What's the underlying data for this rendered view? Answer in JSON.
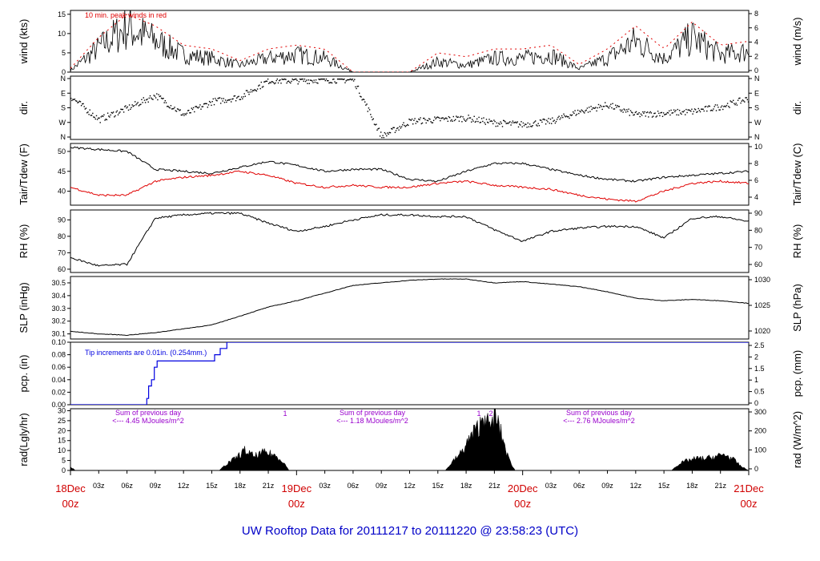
{
  "footer": "UW Rooftop Data for 20111217  to  20111220 @ 23:58:23  (UTC)",
  "colors": {
    "temp": "#000000",
    "dew": "#e00000",
    "peak": "#e00000",
    "pcp": "#0000e0",
    "note": "#9900cc",
    "day": "#d00000",
    "footer": "#0000c8"
  },
  "chart_data": [
    {
      "type": "line",
      "id": "wind",
      "ylabel_left": "wind (kts)",
      "ylabel_right": "wind (m/s)",
      "ylim": [
        0,
        16
      ],
      "yticks_left": [
        "0",
        "5",
        "10",
        "15"
      ],
      "yticks_right": [
        "0",
        "2",
        "4",
        "6",
        "8"
      ],
      "annotation": "10 min. peak winds in red",
      "x": [
        0,
        3,
        6,
        9,
        12,
        15,
        18,
        21,
        24,
        27,
        30,
        33,
        36,
        39,
        42,
        45,
        48,
        51,
        54,
        57,
        60,
        63,
        66,
        69,
        72
      ],
      "series": [
        {
          "values": [
            0.5,
            7,
            13,
            9,
            5,
            4,
            2,
            4,
            5,
            4,
            0,
            0,
            0,
            3,
            2,
            4,
            4,
            5,
            1,
            4,
            9,
            4,
            10,
            5,
            6
          ]
        },
        {
          "values": [
            1,
            9,
            15,
            12,
            7,
            6,
            3,
            6,
            7,
            6,
            0,
            0,
            0,
            5,
            4,
            6,
            6,
            7,
            2,
            6,
            12,
            6,
            13,
            7,
            8
          ]
        }
      ]
    },
    {
      "type": "scatter",
      "id": "dir",
      "ylabel_left": "dir.",
      "ylabel_right": "dir.",
      "yticks_left": [
        "N",
        "W",
        "S",
        "E",
        "N"
      ],
      "yticks_right": [
        "N",
        "W",
        "S",
        "E",
        "N"
      ],
      "ylim": [
        0,
        360
      ],
      "x": [
        0,
        3,
        6,
        9,
        12,
        15,
        18,
        21,
        24,
        27,
        30,
        33,
        36,
        39,
        42,
        45,
        48,
        51,
        54,
        57,
        60,
        63,
        66,
        69,
        72
      ],
      "values": [
        250,
        110,
        180,
        260,
        140,
        220,
        250,
        350,
        350,
        355,
        355,
        5,
        100,
        110,
        120,
        90,
        80,
        100,
        160,
        200,
        140,
        150,
        160,
        190,
        240
      ]
    },
    {
      "type": "line",
      "id": "temp",
      "ylabel_left": "Tair/Tdew (F)",
      "ylabel_right": "Tair/Tdew (C)",
      "ylim": [
        36.5,
        52
      ],
      "yticks_left": [
        "40",
        "45",
        "50"
      ],
      "yticks_right": [
        "4",
        "6",
        "8",
        "10"
      ],
      "x": [
        0,
        3,
        6,
        9,
        12,
        15,
        18,
        21,
        24,
        27,
        30,
        33,
        36,
        39,
        42,
        45,
        48,
        51,
        54,
        57,
        60,
        63,
        66,
        69,
        72
      ],
      "series": [
        {
          "values": [
            51,
            50.5,
            50,
            45.5,
            45,
            44.5,
            46,
            47.5,
            46.5,
            45,
            45.5,
            45.5,
            43,
            42.5,
            45,
            47,
            47,
            45.5,
            44,
            43,
            42.5,
            43.5,
            44,
            44.5,
            45
          ]
        },
        {
          "values": [
            41,
            39,
            39,
            42.5,
            43.5,
            44,
            45,
            44,
            42,
            41,
            41.5,
            41,
            41,
            42,
            42.5,
            41.5,
            41,
            40.5,
            39,
            38,
            37.5,
            40,
            42,
            42.5,
            42
          ]
        }
      ]
    },
    {
      "type": "line",
      "id": "rh",
      "ylabel_left": "RH (%)",
      "ylabel_right": "RH (%)",
      "ylim": [
        58,
        96
      ],
      "yticks_left": [
        "60",
        "70",
        "80",
        "90"
      ],
      "yticks_right": [
        "60",
        "70",
        "80",
        "90"
      ],
      "x": [
        0,
        3,
        6,
        9,
        12,
        15,
        18,
        21,
        24,
        27,
        30,
        33,
        36,
        39,
        42,
        45,
        48,
        51,
        54,
        57,
        60,
        63,
        66,
        69,
        72
      ],
      "values": [
        67,
        62,
        63,
        91,
        93,
        94,
        94,
        88,
        83,
        86,
        90,
        93,
        93,
        92,
        92,
        84,
        77,
        83,
        85,
        86,
        86,
        79,
        91,
        92,
        89
      ]
    },
    {
      "type": "line",
      "id": "slp",
      "ylabel_left": "SLP (inHg)",
      "ylabel_right": "SLP (hPa)",
      "ylim": [
        30.06,
        30.55
      ],
      "yticks_left": [
        "30.1",
        "30.2",
        "30.3",
        "30.4",
        "30.5"
      ],
      "yticks_right": [
        "1020",
        "1025",
        "1030"
      ],
      "x": [
        0,
        3,
        6,
        9,
        12,
        15,
        18,
        21,
        24,
        27,
        30,
        33,
        36,
        39,
        42,
        45,
        48,
        51,
        54,
        57,
        60,
        63,
        66,
        69,
        72
      ],
      "values": [
        30.12,
        30.1,
        30.09,
        30.11,
        30.14,
        30.17,
        30.24,
        30.31,
        30.36,
        30.42,
        30.48,
        30.5,
        30.52,
        30.53,
        30.53,
        30.5,
        30.51,
        30.49,
        30.47,
        30.43,
        30.38,
        30.36,
        30.37,
        30.36,
        30.34
      ]
    },
    {
      "type": "line",
      "id": "pcp",
      "ylabel_left": "pcp. (in)",
      "ylabel_right": "pcp. (mm)",
      "ylim": [
        0,
        0.1
      ],
      "yticks_left": [
        "0.00",
        "0.02",
        "0.04",
        "0.06",
        "0.08",
        "0.10"
      ],
      "yticks_right": [
        "0",
        "0.5",
        "1",
        "1.5",
        "2",
        "2.5"
      ],
      "annotation": "Tip increments are 0.01in. (0.254mm.)",
      "x": [
        0,
        8.1,
        8.3,
        8.6,
        8.9,
        9.2,
        15.3,
        15.6,
        15.9,
        16.2,
        16.6,
        72
      ],
      "values": [
        0,
        0.01,
        0.03,
        0.04,
        0.06,
        0.07,
        0.08,
        0.08,
        0.09,
        0.09,
        0.1,
        0.1
      ]
    },
    {
      "type": "area",
      "id": "rad",
      "ylabel_left": "rad(Lgly/hr)",
      "ylabel_right": "rad (W/m^2)",
      "ylim": [
        0,
        31
      ],
      "yticks_left": [
        "0",
        "5",
        "10",
        "15",
        "20",
        "25",
        "30"
      ],
      "yticks_right": [
        "0",
        "100",
        "200",
        "300"
      ],
      "notes": [
        {
          "line1": "Sum of previous day",
          "line2": "<--- 4.45 MJoules/m^2"
        },
        {
          "line1": "Sum of previous day",
          "line2": "<--- 1.18 MJoules/m^2"
        },
        {
          "line1": "Sum of previous day",
          "line2": "<--- 2.76 MJoules/m^2"
        }
      ],
      "marks": [
        "1",
        "1",
        "2"
      ],
      "x": [
        0,
        0.5,
        15.8,
        16.5,
        17.5,
        18.5,
        19.5,
        20.5,
        21.5,
        22.5,
        23.2,
        39.8,
        40.5,
        41.5,
        42,
        42.5,
        43,
        43.5,
        44,
        44.5,
        45,
        45.5,
        46,
        46.5,
        47.2,
        63.8,
        64.5,
        65.5,
        66.5,
        67.5,
        68.5,
        69.5,
        70.5,
        71.2,
        72
      ],
      "values": [
        2,
        0,
        0,
        3,
        6,
        10,
        7,
        9,
        8,
        5,
        0,
        0,
        4,
        9,
        13,
        17,
        20,
        23,
        30,
        20,
        28,
        22,
        14,
        6,
        0,
        0,
        3,
        5,
        6,
        6,
        7,
        8,
        5,
        2,
        0
      ]
    }
  ],
  "xaxis": {
    "hour_labels": [
      "03z",
      "06z",
      "09z",
      "12z",
      "15z",
      "18z",
      "21z",
      "03z",
      "06z",
      "09z",
      "12z",
      "15z",
      "18z",
      "21z",
      "03z",
      "06z",
      "09z",
      "12z",
      "15z",
      "18z",
      "21z"
    ],
    "day_labels": [
      {
        "date": "18Dec",
        "hour": "00z"
      },
      {
        "date": "19Dec",
        "hour": "00z"
      },
      {
        "date": "20Dec",
        "hour": "00z"
      },
      {
        "date": "21Dec",
        "hour": "00z"
      }
    ]
  }
}
